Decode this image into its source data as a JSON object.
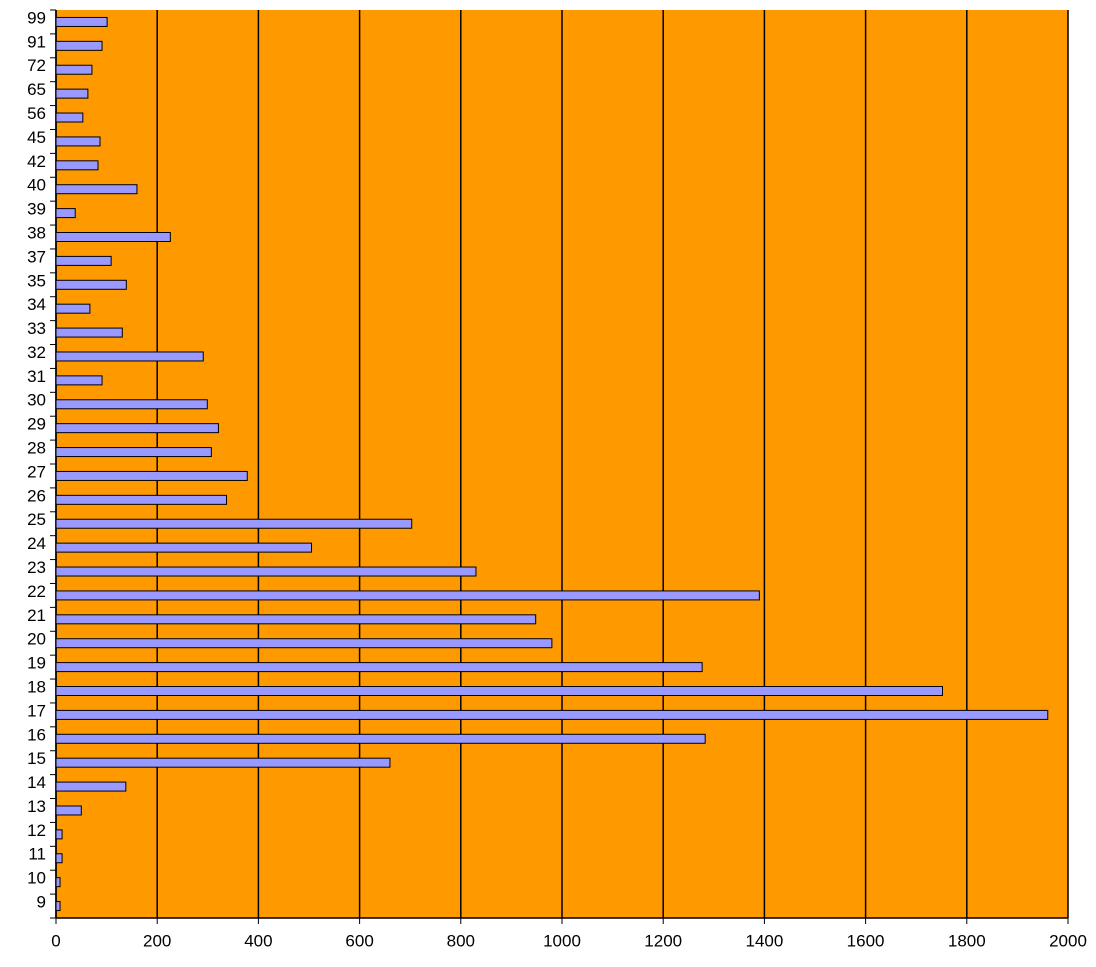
{
  "chart_data": {
    "type": "hbar",
    "categories": [
      "9",
      "10",
      "11",
      "12",
      "13",
      "14",
      "15",
      "16",
      "17",
      "18",
      "19",
      "20",
      "21",
      "22",
      "23",
      "24",
      "25",
      "26",
      "27",
      "28",
      "29",
      "30",
      "31",
      "32",
      "33",
      "34",
      "35",
      "37",
      "38",
      "39",
      "40",
      "42",
      "45",
      "56",
      "65",
      "72",
      "91",
      "99"
    ],
    "values": [
      8,
      8,
      12,
      12,
      50,
      138,
      660,
      1283,
      1960,
      1752,
      1277,
      980,
      948,
      1390,
      830,
      505,
      703,
      337,
      378,
      307,
      321,
      299,
      91,
      291,
      131,
      67,
      139,
      109,
      226,
      38,
      160,
      83,
      87,
      53,
      63,
      71,
      91,
      101
    ],
    "color": "#9999ff",
    "background": "#ff9900",
    "xlim": [
      0,
      2000
    ],
    "xticks": [
      0,
      200,
      400,
      600,
      800,
      1000,
      1200,
      1400,
      1600,
      1800,
      2000
    ],
    "grid": true
  }
}
